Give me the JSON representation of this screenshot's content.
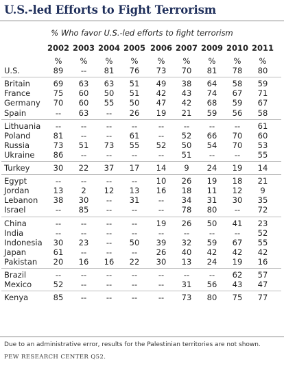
{
  "title": "U.S.-led Efforts to Fight Terrorism",
  "subtitle": "% Who favor U.S.-led efforts to fight terrorism",
  "years": [
    "2002",
    "2003",
    "2004",
    "2005",
    "2006",
    "2007",
    "2009",
    "2010",
    "2011"
  ],
  "percent_row": [
    "%",
    "%",
    "%",
    "%",
    "%",
    "%",
    "%",
    "%",
    "%"
  ],
  "groups": [
    [
      {
        "country": "U.S.",
        "values": [
          "89",
          "--",
          "81",
          "76",
          "73",
          "70",
          "81",
          "78",
          "80"
        ]
      }
    ],
    [
      {
        "country": "Britain",
        "values": [
          "69",
          "63",
          "63",
          "51",
          "49",
          "38",
          "64",
          "58",
          "59"
        ]
      },
      {
        "country": "France",
        "values": [
          "75",
          "60",
          "50",
          "51",
          "42",
          "43",
          "74",
          "67",
          "71"
        ]
      },
      {
        "country": "Germany",
        "values": [
          "70",
          "60",
          "55",
          "50",
          "47",
          "42",
          "68",
          "59",
          "67"
        ]
      },
      {
        "country": "Spain",
        "values": [
          "--",
          "63",
          "--",
          "26",
          "19",
          "21",
          "59",
          "56",
          "58"
        ]
      }
    ],
    [
      {
        "country": "Lithuania",
        "values": [
          "--",
          "--",
          "--",
          "--",
          "--",
          "--",
          "--",
          "--",
          "61"
        ]
      },
      {
        "country": "Poland",
        "values": [
          "81",
          "--",
          "--",
          "61",
          "--",
          "52",
          "66",
          "70",
          "60"
        ]
      },
      {
        "country": "Russia",
        "values": [
          "73",
          "51",
          "73",
          "55",
          "52",
          "50",
          "54",
          "70",
          "53"
        ]
      },
      {
        "country": "Ukraine",
        "values": [
          "86",
          "--",
          "--",
          "--",
          "--",
          "51",
          "--",
          "--",
          "55"
        ]
      }
    ],
    [
      {
        "country": "Turkey",
        "values": [
          "30",
          "22",
          "37",
          "17",
          "14",
          "9",
          "24",
          "19",
          "14"
        ]
      }
    ],
    [
      {
        "country": "Egypt",
        "values": [
          "--",
          "--",
          "--",
          "--",
          "10",
          "26",
          "19",
          "18",
          "21"
        ]
      },
      {
        "country": "Jordan",
        "values": [
          "13",
          "2",
          "12",
          "13",
          "16",
          "18",
          "11",
          "12",
          "9"
        ]
      },
      {
        "country": "Lebanon",
        "values": [
          "38",
          "30",
          "--",
          "31",
          "--",
          "34",
          "31",
          "30",
          "35"
        ]
      },
      {
        "country": "Israel",
        "values": [
          "--",
          "85",
          "--",
          "--",
          "--",
          "78",
          "80",
          "--",
          "72"
        ]
      }
    ],
    [
      {
        "country": "China",
        "values": [
          "--",
          "--",
          "--",
          "--",
          "19",
          "26",
          "50",
          "41",
          "23"
        ]
      },
      {
        "country": "India",
        "values": [
          "--",
          "--",
          "--",
          "--",
          "--",
          "--",
          "--",
          "--",
          "52"
        ]
      },
      {
        "country": "Indonesia",
        "values": [
          "30",
          "23",
          "--",
          "50",
          "39",
          "32",
          "59",
          "67",
          "55"
        ]
      },
      {
        "country": "Japan",
        "values": [
          "61",
          "--",
          "--",
          "--",
          "26",
          "40",
          "42",
          "42",
          "42"
        ]
      },
      {
        "country": "Pakistan",
        "values": [
          "20",
          "16",
          "16",
          "22",
          "30",
          "13",
          "24",
          "19",
          "16"
        ]
      }
    ],
    [
      {
        "country": "Brazil",
        "values": [
          "--",
          "--",
          "--",
          "--",
          "--",
          "--",
          "--",
          "62",
          "57"
        ]
      },
      {
        "country": "Mexico",
        "values": [
          "52",
          "--",
          "--",
          "--",
          "--",
          "31",
          "56",
          "43",
          "47"
        ]
      }
    ],
    [
      {
        "country": "Kenya",
        "values": [
          "85",
          "--",
          "--",
          "--",
          "--",
          "73",
          "80",
          "75",
          "77"
        ]
      }
    ]
  ],
  "footnote": "Due to an administrative error, results for the Palestinian territories are not shown.",
  "source": "PEW RESEARCH CENTER Q52."
}
